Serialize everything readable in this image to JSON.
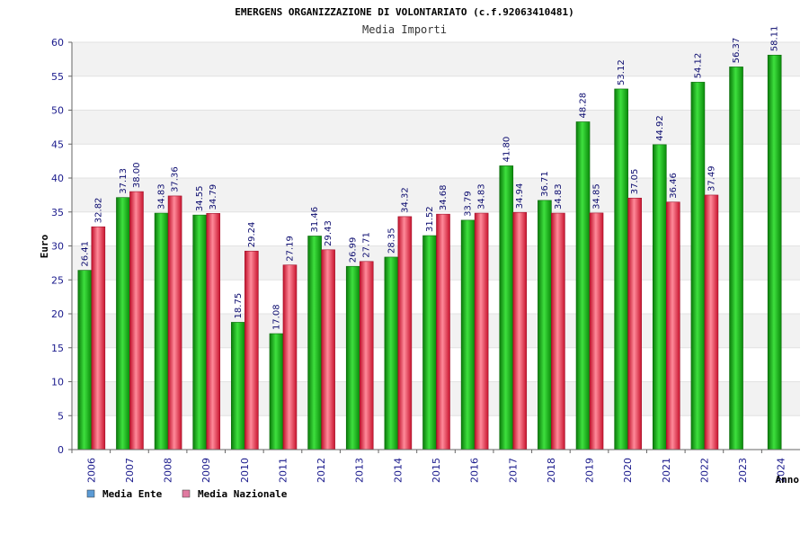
{
  "chart_data": {
    "type": "bar",
    "title": "EMERGENS ORGANIZZAZIONE DI VOLONTARIATO (c.f.92063410481)",
    "subtitle": "Media Importi",
    "xlabel": "Anno",
    "ylabel": "Euro",
    "ylim": [
      0,
      60
    ],
    "yticks": [
      0,
      5,
      10,
      15,
      20,
      25,
      30,
      35,
      40,
      45,
      50,
      55,
      60
    ],
    "categories": [
      "2006",
      "2007",
      "2008",
      "2009",
      "2010",
      "2011",
      "2012",
      "2013",
      "2014",
      "2015",
      "2016",
      "2017",
      "2018",
      "2019",
      "2020",
      "2021",
      "2022",
      "2023",
      "2024"
    ],
    "series": [
      {
        "name": "Media Ente",
        "color": "#1db31d",
        "values": [
          26.41,
          37.13,
          34.83,
          34.55,
          18.75,
          17.08,
          31.46,
          26.99,
          28.35,
          31.52,
          33.79,
          41.8,
          36.71,
          48.28,
          53.12,
          44.92,
          54.12,
          56.37,
          58.11
        ],
        "labels": [
          "26.41",
          "37.13",
          "34.83",
          "34.55",
          "18.75",
          "17.08",
          "31.46",
          "26.99",
          "28.35",
          "31.52",
          "33.79",
          "41.80",
          "36.71",
          "48.28",
          "53.12",
          "44.92",
          "54.12",
          "56.37",
          "58.11"
        ]
      },
      {
        "name": "Media Nazionale",
        "color": "#e0203a",
        "values": [
          32.82,
          38.0,
          37.36,
          34.79,
          29.24,
          27.19,
          29.43,
          27.71,
          34.32,
          34.68,
          34.83,
          34.94,
          34.83,
          34.85,
          37.05,
          36.46,
          37.49,
          null,
          null
        ],
        "labels": [
          "32.82",
          "38.00",
          "37.36",
          "34.79",
          "29.24",
          "27.19",
          "29.43",
          "27.71",
          "34.32",
          "34.68",
          "34.83",
          "34.94",
          "34.83",
          "34.85",
          "37.05",
          "36.46",
          "37.49",
          null,
          null
        ]
      }
    ],
    "legend": {
      "placement": "bottom-left",
      "items": [
        {
          "label": "Media Ente",
          "color": "#5b9bd5"
        },
        {
          "label": "Media Nazionale",
          "color": "#e07aa0"
        }
      ]
    },
    "grid": true
  }
}
